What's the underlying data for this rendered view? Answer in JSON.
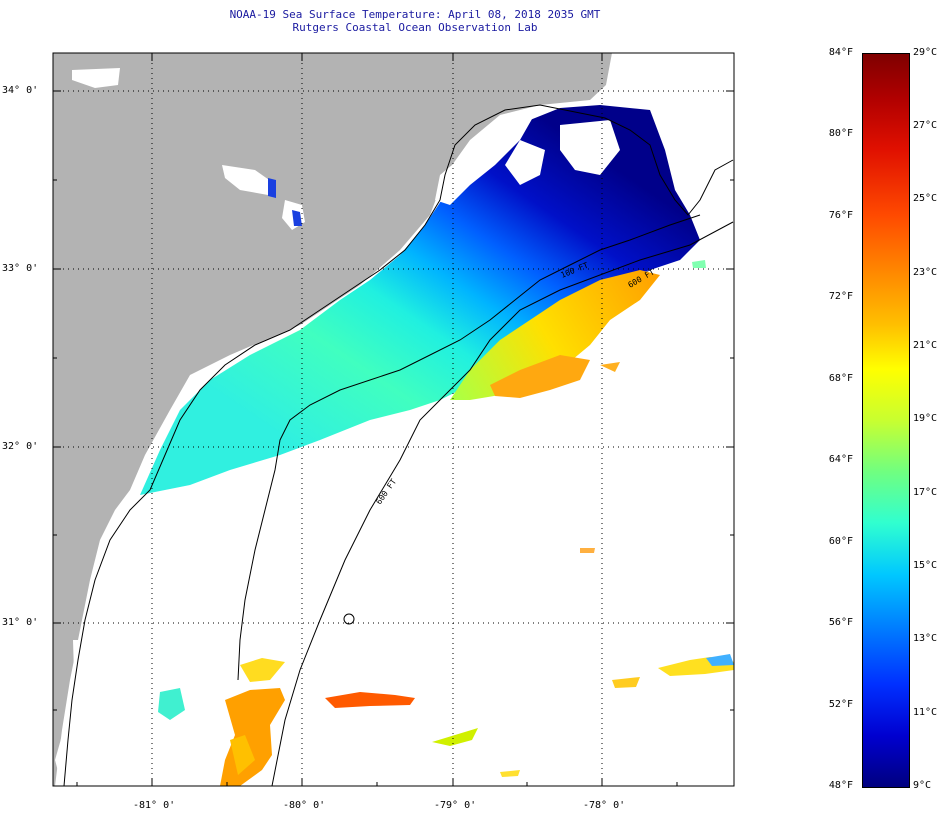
{
  "title": {
    "line1": "NOAA-19 Sea Surface Temperature:  April 08, 2018 2035 GMT",
    "line2": "Rutgers Coastal Ocean Observation Lab"
  },
  "map": {
    "lat_labels": [
      "34° 0'",
      "33° 0'",
      "32° 0'",
      "31° 0'"
    ],
    "lon_labels": [
      "-81° 0'",
      "-80° 0'",
      "-79° 0'",
      "-78° 0'"
    ],
    "isobath_labels": [
      "100 FT",
      "600 FT",
      "600 FT"
    ],
    "colors": {
      "land": "#b3b3b3",
      "cloud": "#ffffff",
      "frame": "#000000"
    }
  },
  "colorbar": {
    "fahrenheit": [
      "84°F",
      "80°F",
      "76°F",
      "72°F",
      "68°F",
      "64°F",
      "60°F",
      "56°F",
      "52°F",
      "48°F"
    ],
    "celsius": [
      "29°C",
      "27°C",
      "25°C",
      "23°C",
      "21°C",
      "19°C",
      "17°C",
      "15°C",
      "13°C",
      "11°C",
      "9°C"
    ]
  }
}
